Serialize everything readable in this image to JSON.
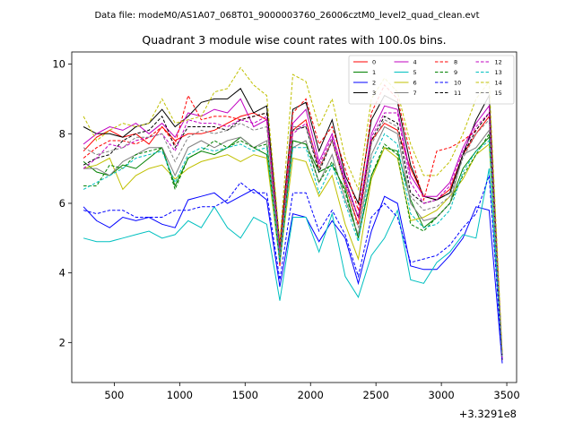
{
  "suptitle": "Data file: modeM0/AS1A07_068T01_9000003760_26006cztM0_level2_quad_clean.evt",
  "chart_data": {
    "type": "line",
    "title": "Quadrant 3 module wise count rates with 100.0s bins.",
    "xlabel": "",
    "ylabel": "",
    "x_offset_label": "+3.3291e8",
    "xlim": [
      175,
      3575
    ],
    "ylim": [
      0.85,
      10.35
    ],
    "x_ticks": [
      500,
      1000,
      1500,
      2000,
      2500,
      3000,
      3500
    ],
    "y_ticks": [
      2,
      4,
      6,
      8,
      10
    ],
    "grid": false,
    "legend_placement": "top-right",
    "legend_columns": 4,
    "x": [
      265,
      365,
      465,
      565,
      665,
      765,
      865,
      965,
      1065,
      1165,
      1265,
      1365,
      1465,
      1565,
      1665,
      1765,
      1865,
      1965,
      2065,
      2165,
      2265,
      2365,
      2465,
      2565,
      2665,
      2765,
      2865,
      2965,
      3065,
      3165,
      3265,
      3365,
      3465
    ],
    "series": [
      {
        "name": "0",
        "color": "#ff0000",
        "dash": "solid",
        "values": [
          7.5,
          7.9,
          8.1,
          7.9,
          8.0,
          7.7,
          8.2,
          7.8,
          8.0,
          8.0,
          8.1,
          8.3,
          8.5,
          8.6,
          8.4,
          4.2,
          8.1,
          8.4,
          7.0,
          7.8,
          6.5,
          5.4,
          7.8,
          8.3,
          8.1,
          7.0,
          6.2,
          6.1,
          6.4,
          7.4,
          8.0,
          8.5,
          1.5
        ]
      },
      {
        "name": "1",
        "color": "#008000",
        "dash": "solid",
        "values": [
          7.2,
          6.9,
          6.8,
          7.1,
          7.0,
          7.3,
          7.6,
          6.5,
          7.3,
          7.5,
          7.4,
          7.6,
          7.9,
          7.6,
          7.4,
          4.4,
          7.8,
          7.7,
          6.9,
          7.1,
          6.4,
          5.0,
          6.8,
          7.6,
          7.5,
          6.1,
          5.3,
          5.6,
          6.0,
          7.0,
          7.5,
          7.9,
          1.6
        ]
      },
      {
        "name": "2",
        "color": "#0000ff",
        "dash": "solid",
        "values": [
          5.9,
          5.5,
          5.3,
          5.6,
          5.5,
          5.6,
          5.4,
          5.3,
          6.1,
          6.2,
          6.3,
          6.0,
          6.2,
          6.4,
          6.1,
          3.6,
          5.7,
          5.6,
          4.9,
          5.5,
          5.0,
          3.7,
          5.2,
          6.2,
          6.0,
          4.2,
          4.1,
          4.1,
          4.5,
          5.0,
          5.9,
          5.8,
          1.4
        ]
      },
      {
        "name": "3",
        "color": "#000000",
        "dash": "solid",
        "values": [
          8.2,
          8.0,
          8.0,
          7.9,
          8.2,
          8.3,
          8.7,
          8.2,
          8.5,
          8.9,
          9.0,
          9.0,
          9.3,
          8.6,
          8.8,
          4.8,
          8.7,
          8.9,
          7.5,
          8.4,
          6.8,
          6.0,
          8.4,
          9.1,
          8.9,
          7.1,
          6.2,
          6.1,
          6.3,
          7.4,
          8.4,
          9.1,
          1.6
        ]
      },
      {
        "name": "4",
        "color": "#c000c0",
        "dash": "solid",
        "values": [
          7.7,
          8.0,
          8.2,
          8.1,
          8.3,
          8.0,
          8.3,
          7.9,
          8.6,
          8.5,
          8.7,
          8.6,
          9.0,
          8.2,
          8.4,
          4.6,
          8.3,
          8.7,
          7.2,
          8.0,
          6.7,
          5.6,
          8.0,
          8.8,
          8.7,
          6.8,
          6.2,
          6.2,
          6.6,
          7.6,
          8.3,
          8.8,
          1.5
        ]
      },
      {
        "name": "5",
        "color": "#00c0c0",
        "dash": "solid",
        "values": [
          5.0,
          4.9,
          4.9,
          5.0,
          5.1,
          5.2,
          5.0,
          5.1,
          5.5,
          5.3,
          5.9,
          5.3,
          5.0,
          5.6,
          5.4,
          3.2,
          5.6,
          5.6,
          4.6,
          5.7,
          3.9,
          3.3,
          4.5,
          5.0,
          5.8,
          3.8,
          3.7,
          4.3,
          4.6,
          5.1,
          5.0,
          7.0,
          1.6
        ]
      },
      {
        "name": "6",
        "color": "#c0c000",
        "dash": "solid",
        "values": [
          7.0,
          7.1,
          7.3,
          6.4,
          6.8,
          7.0,
          7.1,
          6.7,
          7.0,
          7.2,
          7.3,
          7.4,
          7.2,
          7.4,
          7.3,
          4.3,
          7.3,
          7.2,
          6.2,
          6.8,
          5.4,
          4.4,
          6.7,
          7.6,
          7.3,
          5.5,
          5.6,
          5.8,
          6.2,
          6.7,
          7.4,
          7.7,
          1.7
        ]
      },
      {
        "name": "7",
        "color": "#808080",
        "dash": "solid",
        "values": [
          7.0,
          7.0,
          6.8,
          7.2,
          7.4,
          7.6,
          7.6,
          6.8,
          7.6,
          7.8,
          7.6,
          7.8,
          7.9,
          7.6,
          7.8,
          4.5,
          7.6,
          7.8,
          6.6,
          7.4,
          6.1,
          5.1,
          7.4,
          8.2,
          8.0,
          6.0,
          5.5,
          5.6,
          6.0,
          7.4,
          7.6,
          8.1,
          1.6
        ]
      },
      {
        "name": "8",
        "color": "#ff0000",
        "dash": "dashed",
        "values": [
          7.3,
          7.6,
          7.8,
          7.8,
          7.7,
          7.9,
          8.2,
          7.7,
          9.1,
          8.4,
          8.5,
          8.5,
          8.4,
          8.5,
          8.6,
          4.7,
          8.6,
          9.0,
          7.7,
          8.2,
          7.0,
          5.8,
          8.6,
          9.4,
          9.0,
          7.4,
          6.1,
          7.5,
          7.6,
          7.8,
          8.1,
          8.6,
          1.6
        ]
      },
      {
        "name": "9",
        "color": "#008000",
        "dash": "dashed",
        "values": [
          6.5,
          6.5,
          7.1,
          7.0,
          7.4,
          7.5,
          7.6,
          6.4,
          7.3,
          7.5,
          7.8,
          7.6,
          7.8,
          7.6,
          7.7,
          4.3,
          7.8,
          7.7,
          6.6,
          7.2,
          6.3,
          5.0,
          6.8,
          7.7,
          7.4,
          5.4,
          5.2,
          5.6,
          6.0,
          6.8,
          7.4,
          8.0,
          1.6
        ]
      },
      {
        "name": "10",
        "color": "#0000ff",
        "dash": "dashed",
        "values": [
          5.8,
          5.7,
          5.8,
          5.8,
          5.6,
          5.6,
          5.6,
          5.8,
          5.8,
          5.9,
          5.9,
          6.1,
          6.6,
          6.3,
          6.3,
          3.8,
          6.3,
          6.3,
          5.2,
          5.8,
          5.1,
          3.9,
          5.6,
          6.0,
          5.6,
          4.3,
          4.4,
          4.5,
          4.8,
          5.3,
          5.7,
          6.8,
          1.5
        ]
      },
      {
        "name": "11",
        "color": "#000000",
        "dash": "dashed",
        "values": [
          7.1,
          7.3,
          7.4,
          7.8,
          8.0,
          8.1,
          8.5,
          7.6,
          8.2,
          8.2,
          8.2,
          8.1,
          8.4,
          8.5,
          8.6,
          4.6,
          8.1,
          8.2,
          6.9,
          7.8,
          6.6,
          5.6,
          7.8,
          8.5,
          8.3,
          6.3,
          6.0,
          6.1,
          6.3,
          7.4,
          8.1,
          8.6,
          1.5
        ]
      },
      {
        "name": "12",
        "color": "#c000c0",
        "dash": "dashed",
        "values": [
          7.0,
          7.3,
          7.7,
          7.6,
          7.8,
          7.9,
          8.0,
          7.5,
          8.4,
          8.3,
          8.3,
          8.2,
          8.4,
          8.3,
          8.5,
          4.6,
          8.0,
          8.3,
          7.1,
          7.9,
          6.6,
          5.6,
          7.9,
          8.6,
          8.6,
          6.6,
          6.0,
          6.1,
          6.5,
          7.5,
          8.2,
          8.6,
          1.5
        ]
      },
      {
        "name": "13",
        "color": "#00c0c0",
        "dash": "dashed",
        "values": [
          6.4,
          6.6,
          6.8,
          7.0,
          7.3,
          7.4,
          7.5,
          6.6,
          7.4,
          7.6,
          7.5,
          7.6,
          7.7,
          7.5,
          7.6,
          4.3,
          7.6,
          7.6,
          6.3,
          7.1,
          6.0,
          4.9,
          7.2,
          8.0,
          7.7,
          5.7,
          5.3,
          5.4,
          5.8,
          6.9,
          7.5,
          7.8,
          1.6
        ]
      },
      {
        "name": "14",
        "color": "#c0c000",
        "dash": "dashed",
        "values": [
          8.5,
          7.8,
          8.1,
          8.3,
          8.2,
          8.3,
          9.0,
          8.3,
          8.4,
          8.5,
          9.2,
          9.3,
          9.9,
          9.4,
          9.1,
          4.9,
          9.7,
          9.5,
          8.2,
          9.0,
          7.3,
          6.4,
          9.0,
          9.6,
          9.2,
          7.7,
          6.8,
          6.8,
          7.2,
          8.0,
          9.0,
          9.5,
          1.7
        ]
      },
      {
        "name": "15",
        "color": "#808080",
        "dash": "dashed",
        "values": [
          7.6,
          7.4,
          7.5,
          7.6,
          7.9,
          7.9,
          8.0,
          7.2,
          7.9,
          8.1,
          8.0,
          8.1,
          8.3,
          8.1,
          8.2,
          4.5,
          8.2,
          8.2,
          7.0,
          7.8,
          6.5,
          5.3,
          7.7,
          8.4,
          8.2,
          6.2,
          5.8,
          5.9,
          6.2,
          7.3,
          8.0,
          8.4,
          1.6
        ]
      }
    ]
  }
}
